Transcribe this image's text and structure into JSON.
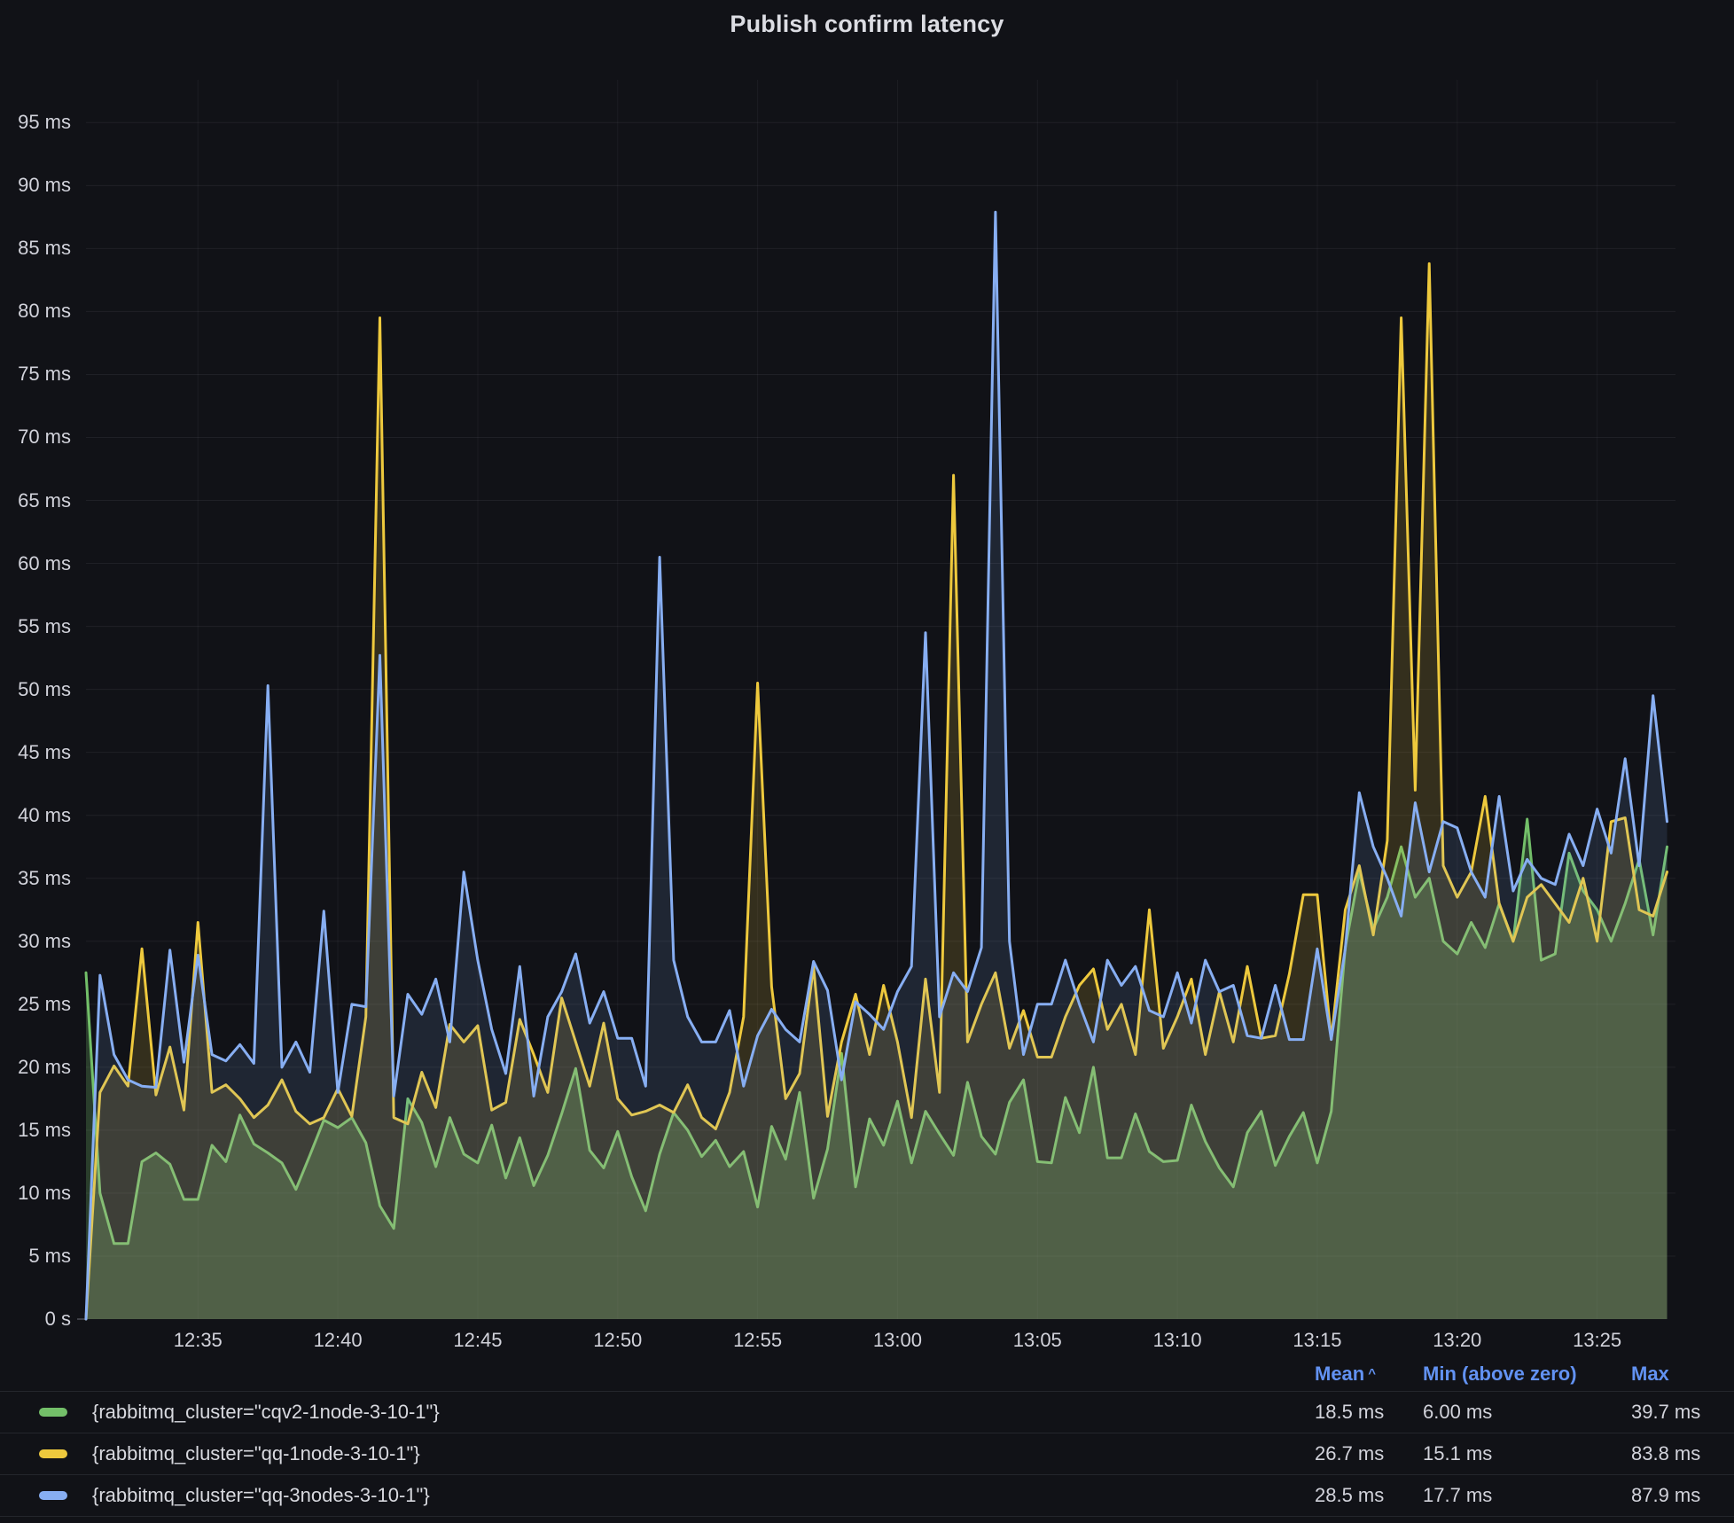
{
  "panel": {
    "title": "Publish confirm latency"
  },
  "colors": {
    "background": "#111217",
    "axis_text": "#d2d3db",
    "grid": "rgba(204,204,220,0.08)",
    "grid_vertical": "rgba(204,204,220,0.06)",
    "legend_link": "#6292f2",
    "separator": "#24262c",
    "green": "#73bf69",
    "yellow": "#eec93d",
    "blue": "#87aef2"
  },
  "legend": {
    "headers": {
      "mean": "Mean",
      "sort_indicator": "^",
      "min": "Min (above zero)",
      "max": "Max"
    }
  },
  "chart_data": {
    "type": "line",
    "title": "Publish confirm latency",
    "unit": "ms",
    "grid": true,
    "legend_position": "bottom-table",
    "time_start": "12:31:00",
    "time_step_seconds": 30,
    "x_start_minutes": 1.0,
    "x_step_minutes": 0.5,
    "xlim_minutes": [
      1.0,
      57.8
    ],
    "ylim": [
      0,
      98.4
    ],
    "x_ticks": [
      {
        "t": 5,
        "label": "12:35"
      },
      {
        "t": 10,
        "label": "12:40"
      },
      {
        "t": 15,
        "label": "12:45"
      },
      {
        "t": 20,
        "label": "12:50"
      },
      {
        "t": 25,
        "label": "12:55"
      },
      {
        "t": 30,
        "label": "13:00"
      },
      {
        "t": 35,
        "label": "13:05"
      },
      {
        "t": 40,
        "label": "13:10"
      },
      {
        "t": 45,
        "label": "13:15"
      },
      {
        "t": 50,
        "label": "13:20"
      },
      {
        "t": 55,
        "label": "13:25"
      }
    ],
    "y_ticks": [
      {
        "v": 0,
        "label": "0 s"
      },
      {
        "v": 5,
        "label": "5 ms"
      },
      {
        "v": 10,
        "label": "10 ms"
      },
      {
        "v": 15,
        "label": "15 ms"
      },
      {
        "v": 20,
        "label": "20 ms"
      },
      {
        "v": 25,
        "label": "25 ms"
      },
      {
        "v": 30,
        "label": "30 ms"
      },
      {
        "v": 35,
        "label": "35 ms"
      },
      {
        "v": 40,
        "label": "40 ms"
      },
      {
        "v": 45,
        "label": "45 ms"
      },
      {
        "v": 50,
        "label": "50 ms"
      },
      {
        "v": 55,
        "label": "55 ms"
      },
      {
        "v": 60,
        "label": "60 ms"
      },
      {
        "v": 65,
        "label": "65 ms"
      },
      {
        "v": 70,
        "label": "70 ms"
      },
      {
        "v": 75,
        "label": "75 ms"
      },
      {
        "v": 80,
        "label": "80 ms"
      },
      {
        "v": 85,
        "label": "85 ms"
      },
      {
        "v": 90,
        "label": "90 ms"
      },
      {
        "v": 95,
        "label": "95 ms"
      }
    ],
    "series": [
      {
        "name": "{rabbitmq_cluster=\"cqv2-1node-3-10-1\"}",
        "color": "#73bf69",
        "fill_opacity": 0.26,
        "stats": {
          "mean": "18.5 ms",
          "min_above_zero": "6.00 ms",
          "max": "39.7 ms"
        },
        "values": [
          27.5,
          10.0,
          6.0,
          6.0,
          12.5,
          13.2,
          12.3,
          9.5,
          9.5,
          13.8,
          12.5,
          16.2,
          13.9,
          13.2,
          12.4,
          10.3,
          13.0,
          15.8,
          15.2,
          16.0,
          14.0,
          9.0,
          7.2,
          17.5,
          15.6,
          12.1,
          16.0,
          13.1,
          12.4,
          15.4,
          11.2,
          14.4,
          10.6,
          13.0,
          16.3,
          19.9,
          13.4,
          12.0,
          14.9,
          11.3,
          8.6,
          13.1,
          16.4,
          15.0,
          12.9,
          14.2,
          12.1,
          13.3,
          8.9,
          15.3,
          12.7,
          18.0,
          9.6,
          13.5,
          21.1,
          10.5,
          15.9,
          13.8,
          17.3,
          12.4,
          16.5,
          14.7,
          13.0,
          18.8,
          14.5,
          13.1,
          17.2,
          19.0,
          12.5,
          12.4,
          17.6,
          14.8,
          20.0,
          12.8,
          12.8,
          16.3,
          13.3,
          12.5,
          12.6,
          17.0,
          14.1,
          12.0,
          10.5,
          14.8,
          16.5,
          12.2,
          14.5,
          16.4,
          12.4,
          16.5,
          29.5,
          35.5,
          31.0,
          33.5,
          37.5,
          33.5,
          35.0,
          30.0,
          29.0,
          31.5,
          29.5,
          33.0,
          30.0,
          39.7,
          28.5,
          29.0,
          37.0,
          34.0,
          32.5,
          30.0,
          33.0,
          36.5,
          30.5,
          37.5
        ]
      },
      {
        "name": "{rabbitmq_cluster=\"qq-1node-3-10-1\"}",
        "color": "#eec93d",
        "fill_opacity": 0.16,
        "stats": {
          "mean": "26.7 ms",
          "min_above_zero": "15.1 ms",
          "max": "83.8 ms"
        },
        "values": [
          0.0,
          18.0,
          20.1,
          18.5,
          29.4,
          17.8,
          21.6,
          16.6,
          31.5,
          18.0,
          18.6,
          17.5,
          16.0,
          17.0,
          19.0,
          16.5,
          15.5,
          16.0,
          18.3,
          16.1,
          24.0,
          79.5,
          16.0,
          15.5,
          19.6,
          16.8,
          23.4,
          22.0,
          23.3,
          16.6,
          17.2,
          23.8,
          21.0,
          18.0,
          25.5,
          22.0,
          18.5,
          23.5,
          17.5,
          16.2,
          16.5,
          17.0,
          16.4,
          18.6,
          16.0,
          15.1,
          18.0,
          24.0,
          50.5,
          26.4,
          17.5,
          19.5,
          28.0,
          16.1,
          22.0,
          25.8,
          21.0,
          26.5,
          22.0,
          16.0,
          27.0,
          18.0,
          67.0,
          22.0,
          25.0,
          27.5,
          21.5,
          24.5,
          20.8,
          20.8,
          24.0,
          26.5,
          27.8,
          23.0,
          25.0,
          21.0,
          32.5,
          21.5,
          24.0,
          27.0,
          21.0,
          26.0,
          22.0,
          28.0,
          22.3,
          22.5,
          27.4,
          33.7,
          33.7,
          22.2,
          32.5,
          36.0,
          30.5,
          38.0,
          79.5,
          42.0,
          83.8,
          36.0,
          33.5,
          35.5,
          41.5,
          33.0,
          30.0,
          33.5,
          34.5,
          33.0,
          31.5,
          35.0,
          30.0,
          39.5,
          39.8,
          32.5,
          32.0,
          35.5
        ]
      },
      {
        "name": "{rabbitmq_cluster=\"qq-3nodes-3-10-1\"}",
        "color": "#87aef2",
        "fill_opacity": 0.13,
        "stats": {
          "mean": "28.5 ms",
          "min_above_zero": "17.7 ms",
          "max": "87.9 ms"
        },
        "values": [
          0.0,
          27.3,
          21.0,
          19.0,
          18.5,
          18.4,
          29.3,
          20.4,
          28.9,
          21.0,
          20.5,
          21.8,
          20.3,
          50.3,
          20.0,
          22.0,
          19.6,
          32.4,
          18.0,
          25.0,
          24.8,
          52.7,
          17.7,
          25.8,
          24.2,
          27.0,
          22.0,
          35.5,
          28.5,
          23.0,
          19.5,
          28.0,
          17.7,
          24.0,
          26.0,
          29.0,
          23.5,
          26.0,
          22.3,
          22.3,
          18.5,
          60.5,
          28.5,
          24.0,
          22.0,
          22.0,
          24.5,
          18.5,
          22.5,
          24.6,
          23.0,
          22.0,
          28.4,
          26.1,
          19.0,
          25.2,
          24.2,
          23.0,
          26.0,
          28.0,
          54.5,
          24.0,
          27.5,
          26.0,
          29.5,
          87.9,
          30.0,
          21.0,
          25.0,
          25.0,
          28.5,
          25.0,
          22.0,
          28.5,
          26.5,
          28.0,
          24.5,
          24.0,
          27.5,
          23.5,
          28.5,
          26.0,
          26.5,
          22.5,
          22.3,
          26.5,
          22.2,
          22.2,
          29.4,
          22.2,
          29.4,
          41.8,
          37.5,
          35.0,
          32.0,
          41.0,
          35.5,
          39.5,
          39.0,
          35.5,
          33.5,
          41.5,
          34.0,
          36.5,
          35.0,
          34.5,
          38.5,
          36.0,
          40.5,
          37.0,
          44.5,
          36.0,
          49.5,
          39.5
        ]
      }
    ]
  }
}
